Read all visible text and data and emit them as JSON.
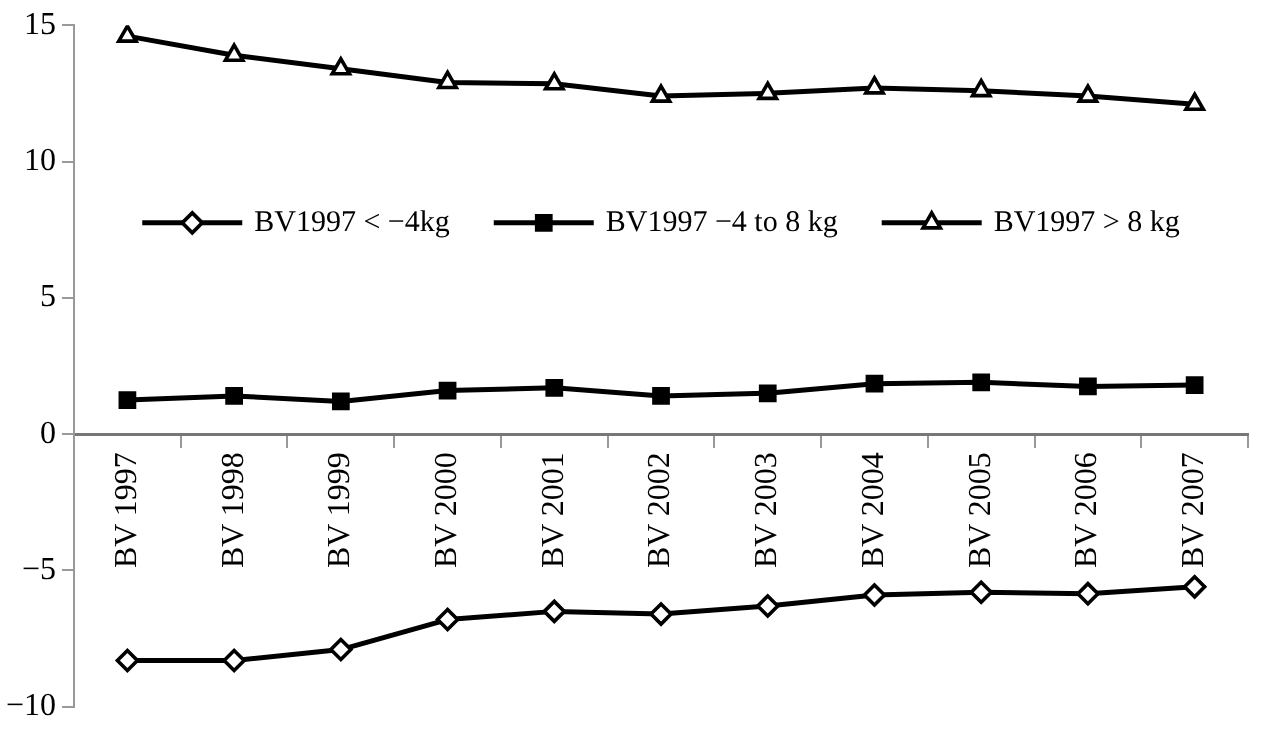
{
  "chart_data": {
    "type": "line",
    "categories": [
      "BV 1997",
      "BV 1998",
      "BV 1999",
      "BV 2000",
      "BV 2001",
      "BV 2002",
      "BV 2003",
      "BV 2004",
      "BV 2005",
      "BV 2006",
      "BV 2007"
    ],
    "series": [
      {
        "name": "BV1997 < −4kg",
        "color": "#000000",
        "marker": "diamond",
        "values": [
          -8.3,
          -8.3,
          -7.9,
          -6.8,
          -6.5,
          -6.6,
          -6.3,
          -5.9,
          -5.8,
          -5.85,
          -5.6
        ]
      },
      {
        "name": "BV1997 −4 to 8 kg",
        "color": "#000000",
        "marker": "square",
        "values": [
          1.25,
          1.4,
          1.2,
          1.6,
          1.7,
          1.4,
          1.5,
          1.85,
          1.9,
          1.75,
          1.8
        ]
      },
      {
        "name": "BV1997 > 8 kg",
        "color": "#000000",
        "marker": "triangle",
        "values": [
          14.6,
          13.9,
          13.4,
          12.9,
          12.85,
          12.4,
          12.5,
          12.7,
          12.6,
          12.4,
          12.1
        ]
      }
    ],
    "ylim": [
      -10,
      15
    ],
    "yticks": [
      -10,
      -5,
      0,
      5,
      10,
      15
    ],
    "grid": false,
    "legend": "top",
    "line_style": "solid"
  }
}
